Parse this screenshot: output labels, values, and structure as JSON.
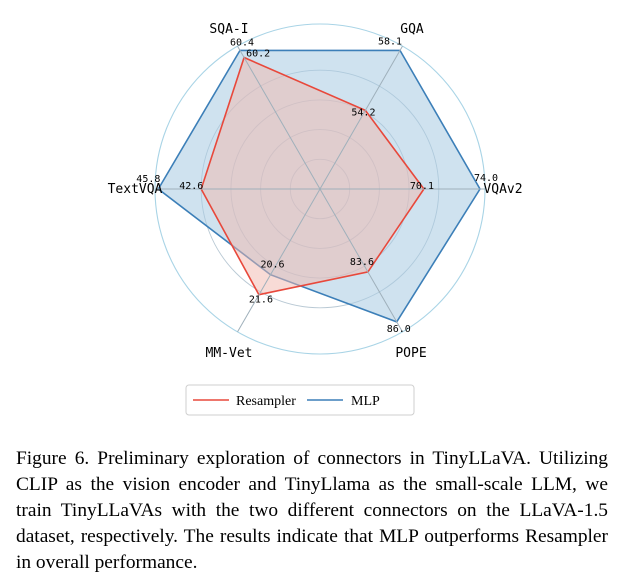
{
  "figure": {
    "caption": "Figure 6. Preliminary exploration of connectors in TinyLLaVA. Utilizing CLIP as the vision encoder and TinyLlama as the small-scale LLM, we train TinyLLaVAs with the two different connectors on the LLaVA-1.5 dataset, respectively. The results indicate that MLP outperforms Resampler in overall performance."
  },
  "chart_data": {
    "type": "radar",
    "axes": [
      "VQAv2",
      "GQA",
      "SQA-I",
      "TextVQA",
      "MM-Vet",
      "POPE"
    ],
    "series": [
      {
        "name": "Resampler",
        "values": [
          70.1,
          54.2,
          60.2,
          42.6,
          21.6,
          83.6
        ],
        "labels": [
          "70.1",
          "54.2",
          "60.2",
          "42.6",
          "21.6",
          "83.6"
        ],
        "color": "#e8483b",
        "fill": "#f2b7ad"
      },
      {
        "name": "MLP",
        "values": [
          74.0,
          58.1,
          60.4,
          45.8,
          20.6,
          86.0
        ],
        "labels": [
          "74.0",
          "58.1",
          "60.4",
          "45.8",
          "20.6",
          "86.0"
        ],
        "color": "#3c7fb8",
        "fill": "#a8cbe1"
      }
    ],
    "legend_position": "bottom-center",
    "grid_color": "#a9d4e6"
  }
}
